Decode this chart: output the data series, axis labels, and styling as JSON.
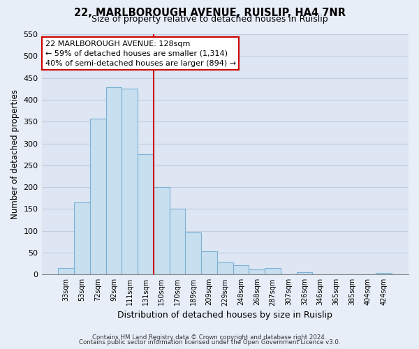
{
  "title": "22, MARLBOROUGH AVENUE, RUISLIP, HA4 7NR",
  "subtitle": "Size of property relative to detached houses in Ruislip",
  "xlabel": "Distribution of detached houses by size in Ruislip",
  "ylabel": "Number of detached properties",
  "bar_labels": [
    "33sqm",
    "53sqm",
    "72sqm",
    "92sqm",
    "111sqm",
    "131sqm",
    "150sqm",
    "170sqm",
    "189sqm",
    "209sqm",
    "229sqm",
    "248sqm",
    "268sqm",
    "287sqm",
    "307sqm",
    "326sqm",
    "346sqm",
    "365sqm",
    "385sqm",
    "404sqm",
    "424sqm"
  ],
  "bar_values": [
    15,
    165,
    357,
    428,
    425,
    275,
    200,
    150,
    97,
    54,
    28,
    22,
    12,
    15,
    0,
    5,
    0,
    0,
    0,
    0,
    3
  ],
  "bar_color": "#c8dff0",
  "bar_edge_color": "#7ab0d4",
  "vline_color": "#cc0000",
  "annotation_title": "22 MARLBOROUGH AVENUE: 128sqm",
  "annotation_line1": "← 59% of detached houses are smaller (1,314)",
  "annotation_line2": "40% of semi-detached houses are larger (894) →",
  "ylim": [
    0,
    550
  ],
  "yticks": [
    0,
    50,
    100,
    150,
    200,
    250,
    300,
    350,
    400,
    450,
    500,
    550
  ],
  "footnote1": "Contains HM Land Registry data © Crown copyright and database right 2024.",
  "footnote2": "Contains public sector information licensed under the Open Government Licence v3.0.",
  "bg_color": "#e8eef8",
  "plot_bg_color": "#dde6f2",
  "grid_color": "#c0cde0"
}
